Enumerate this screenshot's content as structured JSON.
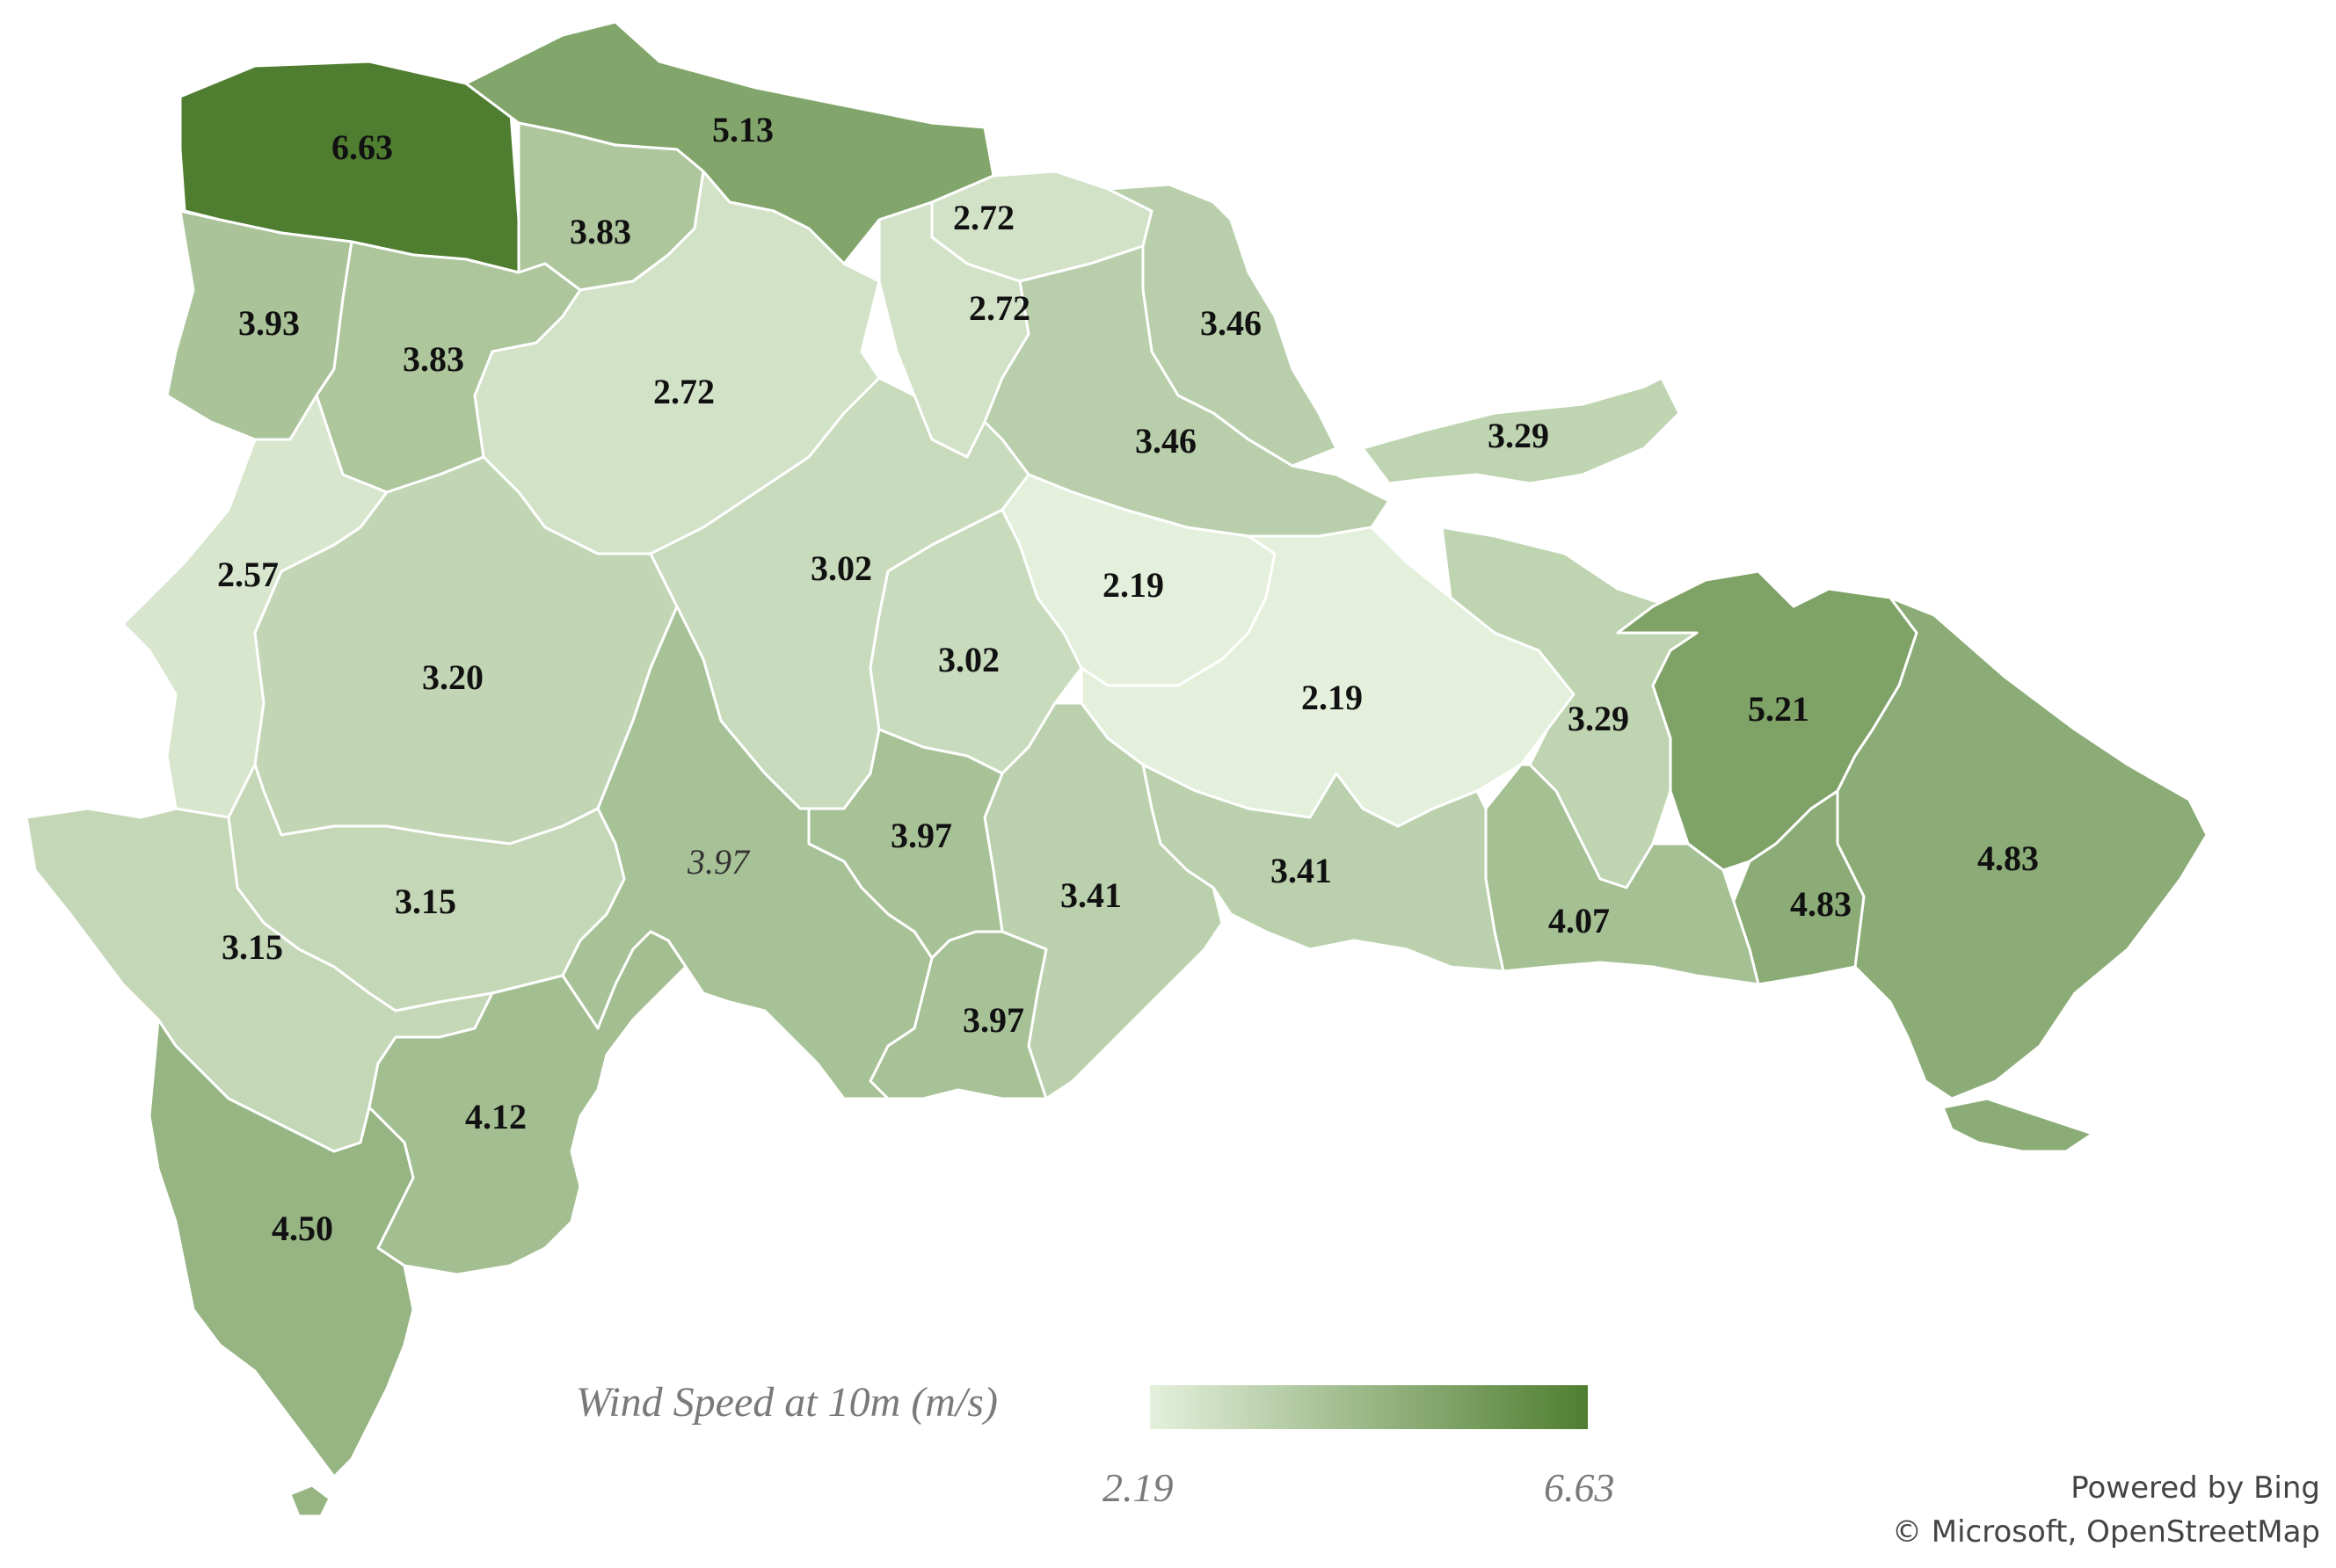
{
  "legend": {
    "title": "Wind Speed at 10m (m/s)",
    "min_label": "2.19",
    "max_label": "6.63",
    "min_color": "#e4f0dc",
    "max_color": "#4f7e30"
  },
  "attribution": {
    "line1": "Powered by Bing",
    "line2": "© Microsoft, OpenStreetMap"
  },
  "provinces": [
    {
      "id": "montecristi",
      "value": 6.63,
      "label": "6.63"
    },
    {
      "id": "puerto-plata",
      "value": 5.13,
      "label": "5.13"
    },
    {
      "id": "valverde",
      "value": 3.83,
      "label": "3.83"
    },
    {
      "id": "dajabon",
      "value": 3.93,
      "label": "3.93"
    },
    {
      "id": "santiago-rodriguez",
      "value": 3.83,
      "label": "3.83"
    },
    {
      "id": "santiago",
      "value": 2.72,
      "label": "2.72"
    },
    {
      "id": "espaillat",
      "value": 2.72,
      "label": "2.72"
    },
    {
      "id": "hermanas-mirabal",
      "value": 2.72,
      "label": "2.72"
    },
    {
      "id": "maria-trinidad-sanchez",
      "value": 3.46,
      "label": "3.46"
    },
    {
      "id": "duarte",
      "value": 3.46,
      "label": "3.46"
    },
    {
      "id": "samana",
      "value": 3.29,
      "label": "3.29"
    },
    {
      "id": "elias-pina",
      "value": 2.57,
      "label": "2.57"
    },
    {
      "id": "san-juan",
      "value": 3.2,
      "label": "3.20"
    },
    {
      "id": "la-vega",
      "value": 3.02,
      "label": "3.02"
    },
    {
      "id": "monsenor-nouel",
      "value": 3.02,
      "label": "3.02"
    },
    {
      "id": "sanchez-ramirez",
      "value": 2.19,
      "label": "2.19"
    },
    {
      "id": "monte-plata",
      "value": 2.19,
      "label": "2.19"
    },
    {
      "id": "hato-mayor",
      "value": 3.29,
      "label": "3.29"
    },
    {
      "id": "el-seibo",
      "value": 5.21,
      "label": "5.21"
    },
    {
      "id": "la-altagracia",
      "value": 4.83,
      "label": "4.83"
    },
    {
      "id": "la-romana",
      "value": 4.83,
      "label": "4.83"
    },
    {
      "id": "san-pedro-de-macoris",
      "value": 4.07,
      "label": "4.07"
    },
    {
      "id": "santo-domingo",
      "value": 3.41,
      "label": "3.41"
    },
    {
      "id": "san-cristobal",
      "value": 3.41,
      "label": "3.41"
    },
    {
      "id": "san-jose-de-ocoa",
      "value": 3.97,
      "label": "3.97"
    },
    {
      "id": "peravia",
      "value": 3.97,
      "label": "3.97"
    },
    {
      "id": "azua",
      "value": 3.97,
      "label": "3.97",
      "italic": true
    },
    {
      "id": "independencia",
      "value": 3.15,
      "label": "3.15"
    },
    {
      "id": "bahoruco",
      "value": 3.15,
      "label": "3.15"
    },
    {
      "id": "barahona",
      "value": 4.12,
      "label": "4.12"
    },
    {
      "id": "pedernales",
      "value": 4.5,
      "label": "4.50"
    }
  ]
}
